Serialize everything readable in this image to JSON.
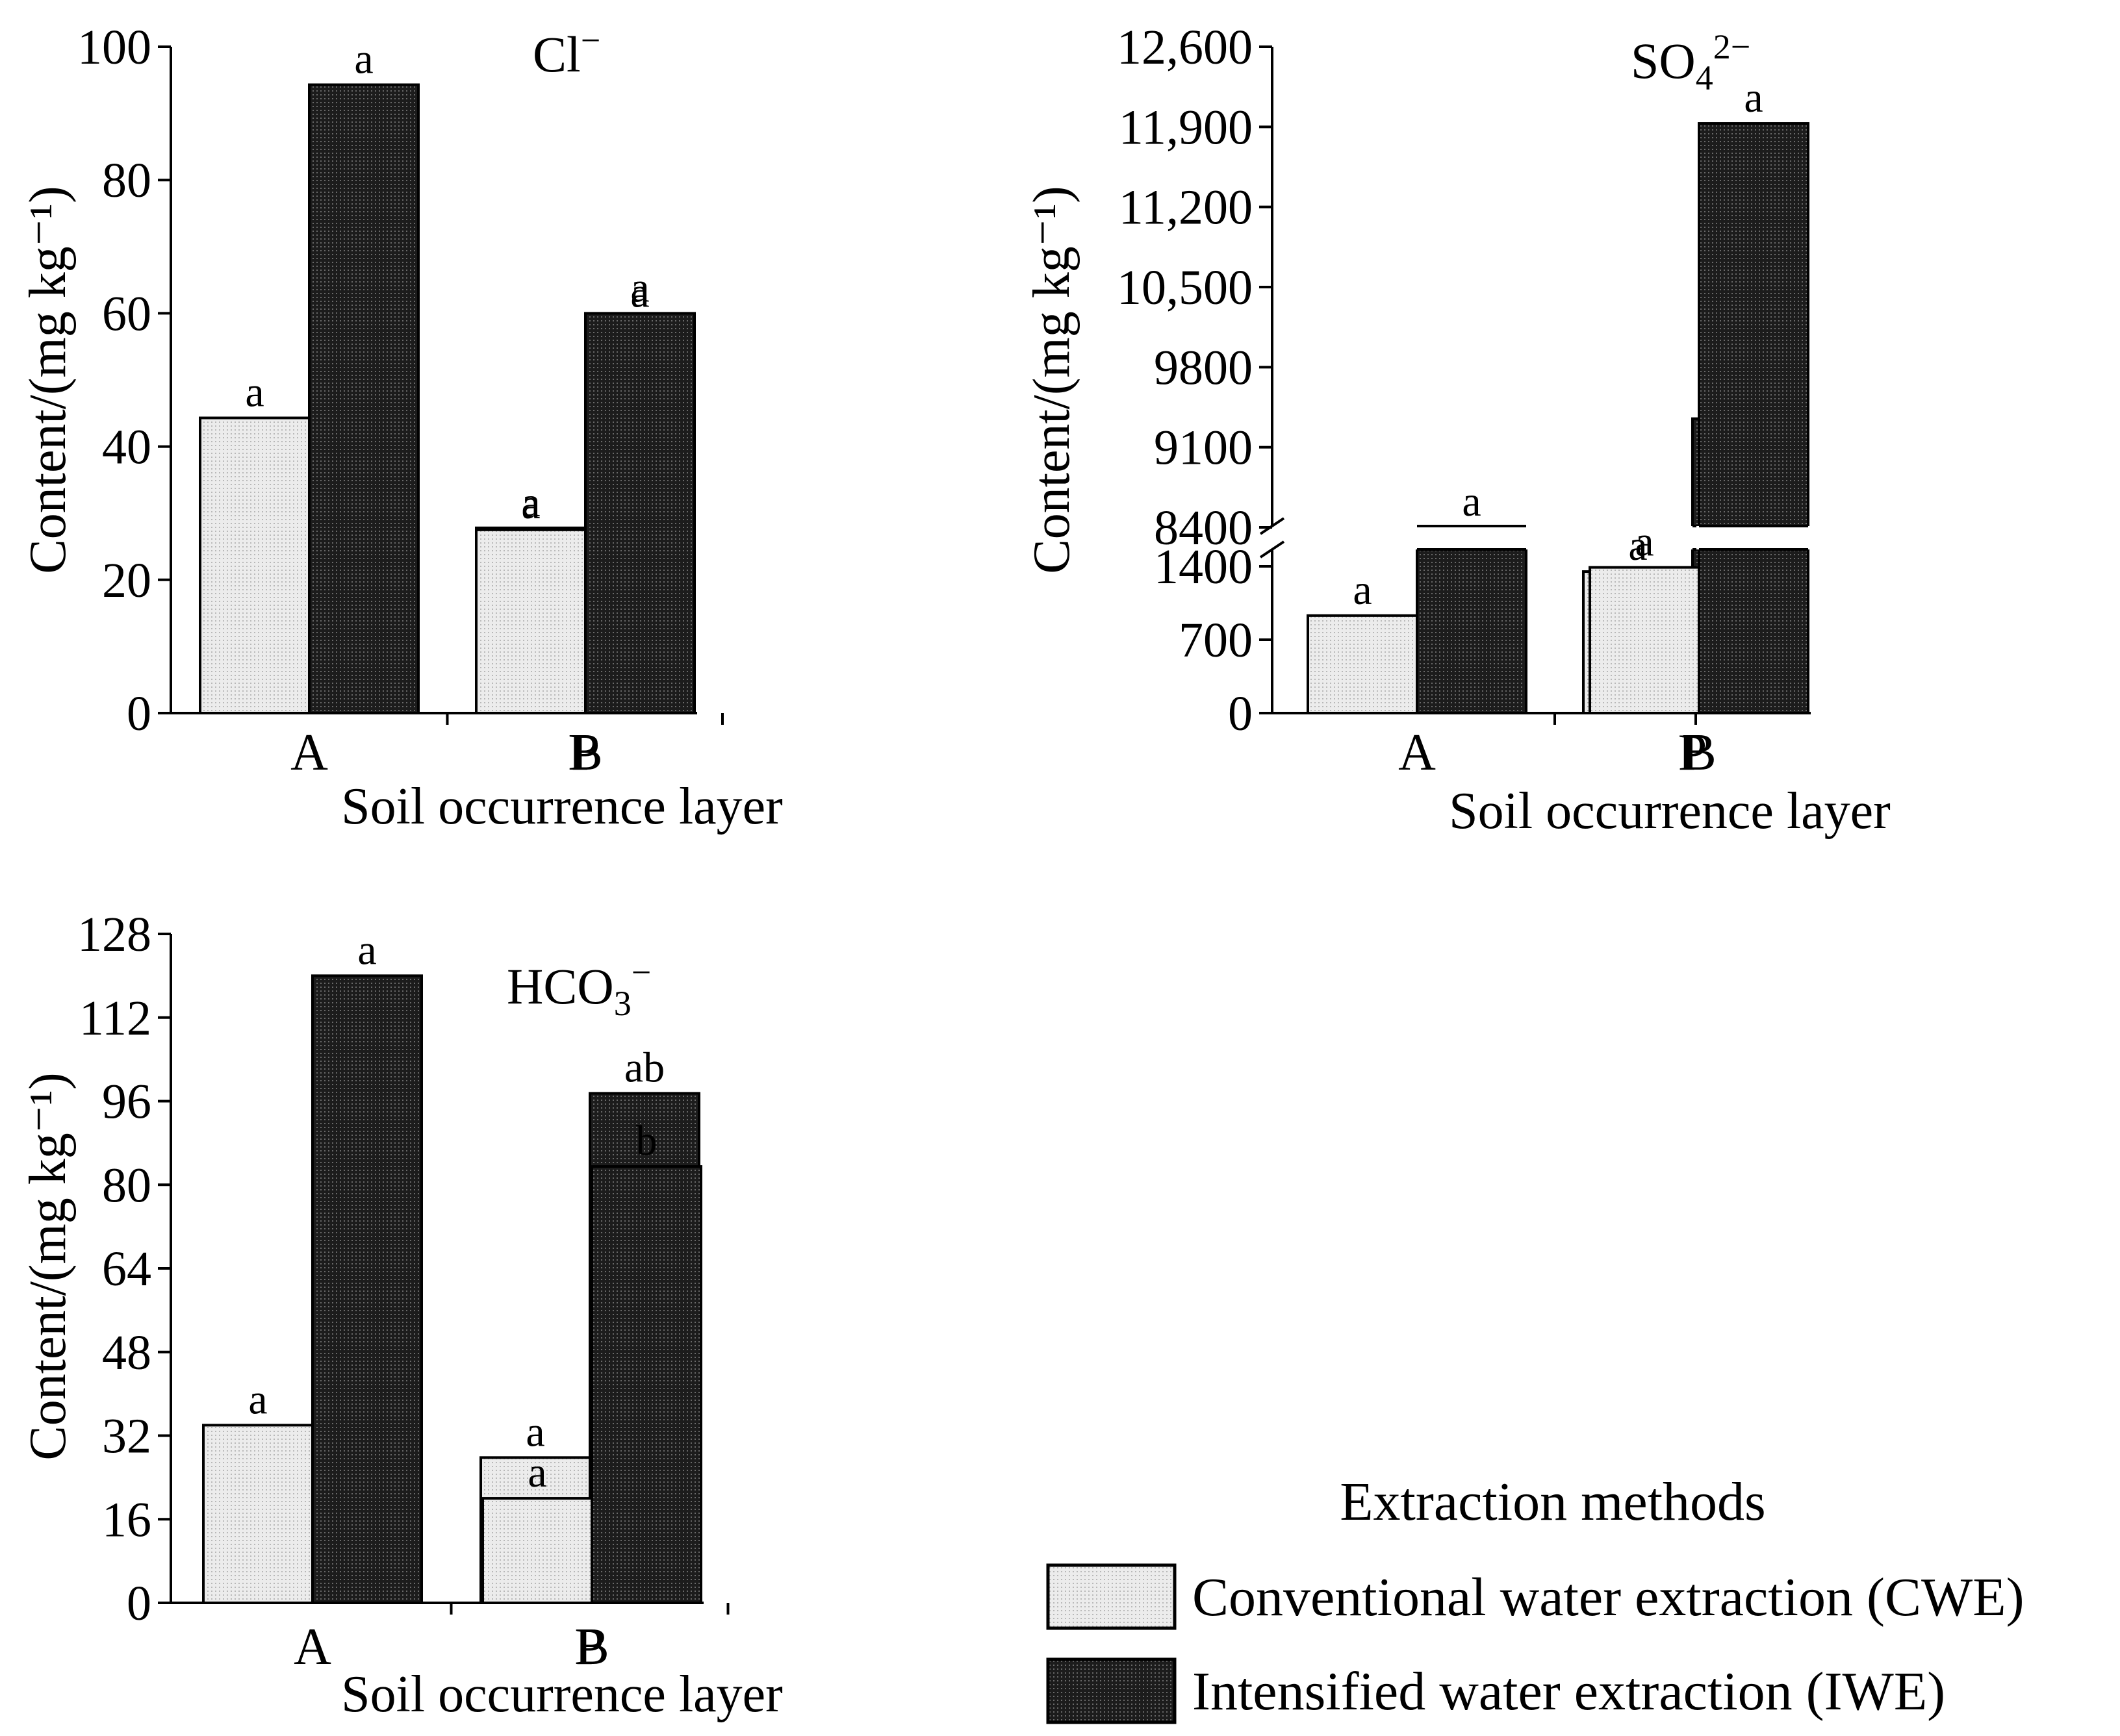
{
  "colors": {
    "cwe_fill": "#ececec",
    "cwe_dot": "#b8b8b8",
    "iwe_fill": "#1c1c1c",
    "iwe_dot": "#6a6a6a",
    "axis": "#000000"
  },
  "chart_data": [
    {
      "type": "bar",
      "panel": "top-left",
      "ion": {
        "base": "Cl",
        "sub": "",
        "sup": "−"
      },
      "xlabel": "Soil occurrence layer",
      "ylabel": "Content/(mg kg⁻¹)",
      "categories": [
        "A",
        "P",
        "B"
      ],
      "ylim": [
        0,
        100
      ],
      "yticks": [
        0,
        20,
        40,
        60,
        80,
        100
      ],
      "ytick_labels": [
        "0",
        "20",
        "40",
        "60",
        "80",
        "100"
      ],
      "series": [
        {
          "name": "Conventional water extraction (CWE)",
          "values": [
            44.3,
            27.8,
            27.5
          ],
          "sig": [
            "a",
            "a",
            "a"
          ]
        },
        {
          "name": "Intensified water extraction (IWE)",
          "values": [
            94.3,
            59.2,
            60.0
          ],
          "sig": [
            "a",
            "a",
            "a"
          ]
        }
      ]
    },
    {
      "type": "bar",
      "panel": "top-right",
      "ion": {
        "base": "SO",
        "sub": "4",
        "sup": "2−"
      },
      "xlabel": "Soil occurrence layer",
      "ylabel": "Content/(mg kg⁻¹)",
      "categories": [
        "A",
        "P",
        "B"
      ],
      "axis_break": {
        "lower": [
          0,
          1400
        ],
        "upper": [
          8400,
          12600
        ]
      },
      "yticks": [
        0,
        700,
        1400,
        8400,
        9100,
        9800,
        10500,
        11200,
        11900,
        12600
      ],
      "ytick_labels": [
        "0",
        "700",
        "1400",
        "8400",
        "9100",
        "9800",
        "10,500",
        "11,200",
        "11,900",
        "12,600"
      ],
      "series": [
        {
          "name": "Conventional water extraction (CWE)",
          "values": [
            930,
            1350,
            1390
          ],
          "sig": [
            "a",
            "a",
            "a"
          ]
        },
        {
          "name": "Intensified water extraction (IWE)",
          "values": [
            8400,
            9350,
            11930
          ],
          "sig": [
            "a",
            "a",
            "a"
          ]
        }
      ]
    },
    {
      "type": "bar",
      "panel": "bottom-left",
      "ion": {
        "base": "HCO",
        "sub": "3",
        "sup": "−"
      },
      "xlabel": "Soil occurrence layer",
      "ylabel": "Content/(mg kg⁻¹)",
      "categories": [
        "A",
        "P",
        "B"
      ],
      "ylim": [
        0,
        128
      ],
      "yticks": [
        0,
        16,
        32,
        48,
        64,
        80,
        96,
        112,
        128
      ],
      "ytick_labels": [
        "0",
        "16",
        "32",
        "48",
        "64",
        "80",
        "96",
        "112",
        "128"
      ],
      "series": [
        {
          "name": "Conventional water extraction (CWE)",
          "values": [
            34.0,
            27.8,
            20.0
          ],
          "sig": [
            "a",
            "a",
            "a"
          ]
        },
        {
          "name": "Intensified water extraction (IWE)",
          "values": [
            120.0,
            97.5,
            83.5
          ],
          "sig": [
            "a",
            "ab",
            "b"
          ]
        }
      ]
    }
  ],
  "legend": {
    "title": "Extraction methods",
    "items": [
      {
        "label": "Conventional water extraction (CWE)",
        "series": 0
      },
      {
        "label": "Intensified water extraction (IWE)",
        "series": 1
      }
    ]
  }
}
